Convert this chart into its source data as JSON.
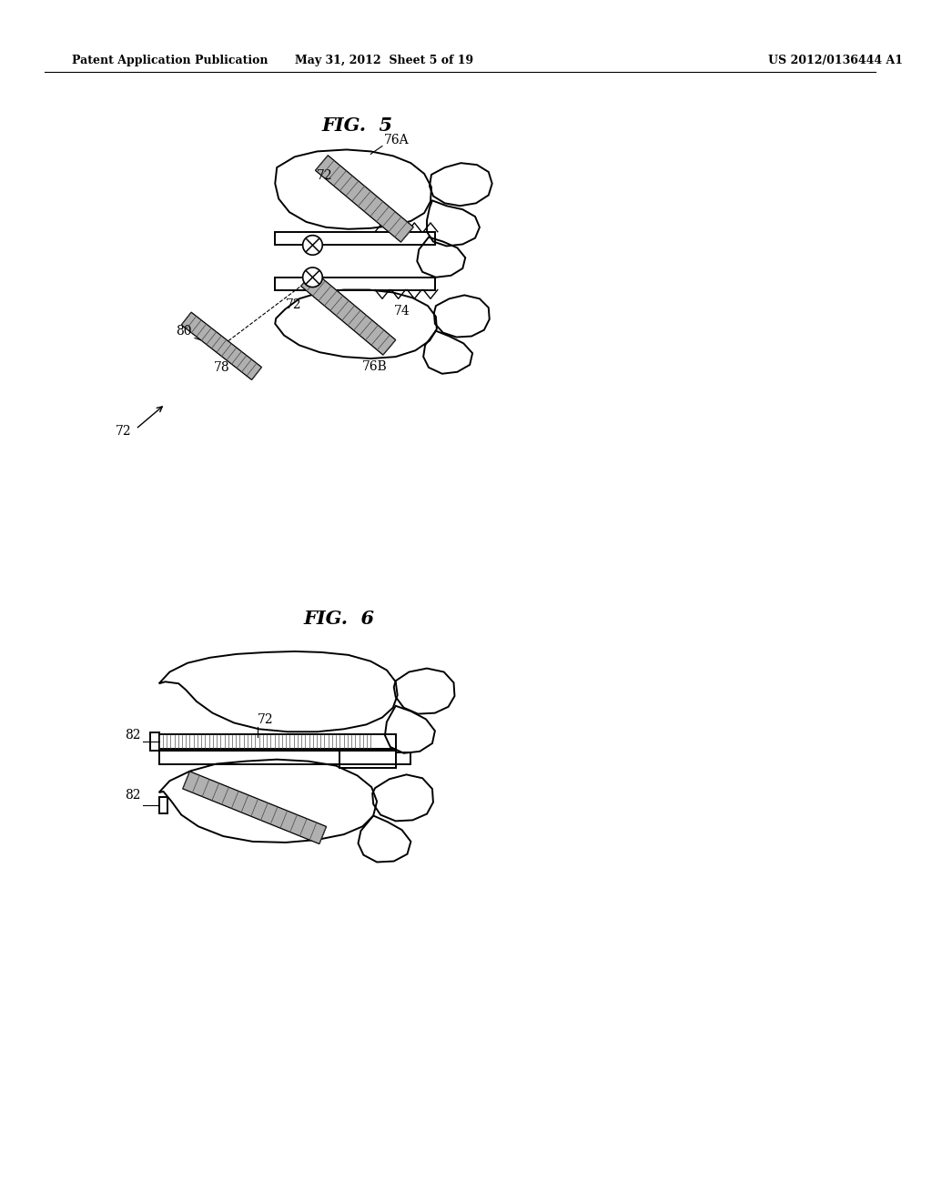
{
  "background_color": "#ffffff",
  "header_left": "Patent Application Publication",
  "header_middle": "May 31, 2012  Sheet 5 of 19",
  "header_right": "US 2012/0136444 A1",
  "fig5_title": "FIG.  5",
  "fig6_title": "FIG.  6",
  "line_color": "#000000",
  "screw_fill": "#888888",
  "screw_line": "#333333",
  "label_fontsize": 10,
  "header_fontsize": 9,
  "title_fontsize": 15
}
